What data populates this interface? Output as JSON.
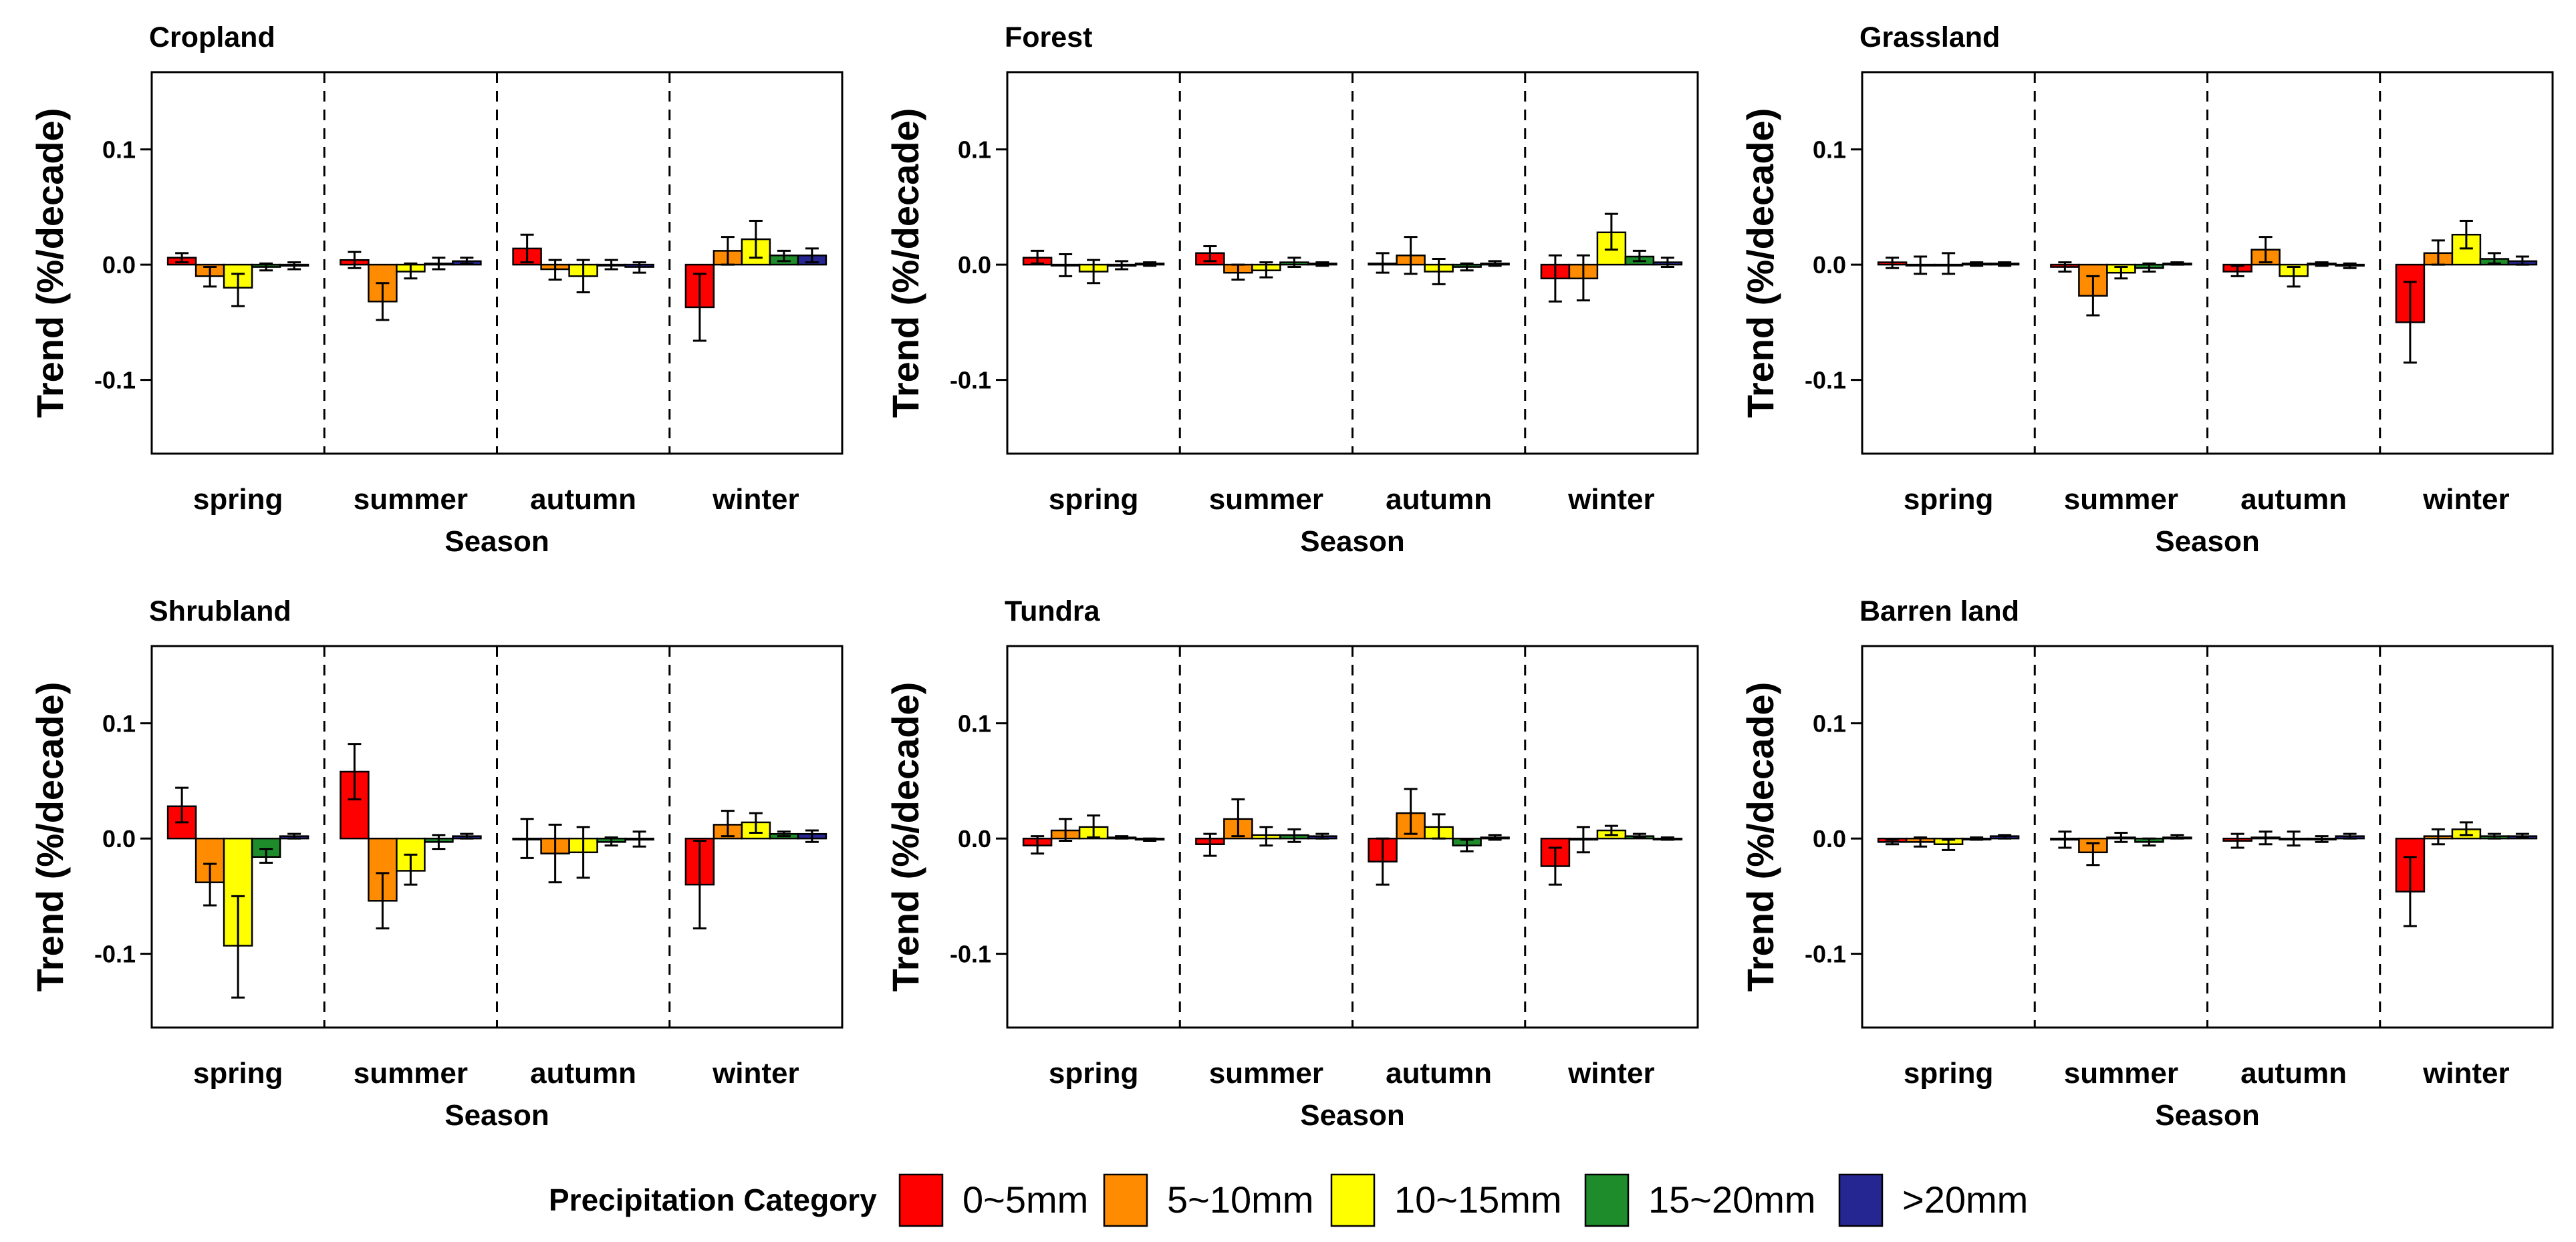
{
  "legend": {
    "title": "Precipitation Category",
    "items": [
      {
        "label": "0~5mm",
        "color": "#FF0000"
      },
      {
        "label": "5~10mm",
        "color": "#FF8C00"
      },
      {
        "label": "10~15mm",
        "color": "#FFFF00"
      },
      {
        "label": "15~20mm",
        "color": "#1E8C2A"
      },
      {
        "label": ">20mm",
        "color": "#262693"
      }
    ]
  },
  "chart_data": [
    {
      "type": "bar",
      "title": "Cropland",
      "xlabel": "Season",
      "ylabel": "Trend (%/decade)",
      "categories": [
        "spring",
        "summer",
        "autumn",
        "winter"
      ],
      "ylim": [
        -0.164,
        0.167
      ],
      "yticks": [
        0.1,
        0.0,
        -0.1
      ],
      "ytick_labels": [
        "0.1",
        "0.0",
        "-0.1"
      ],
      "series": [
        {
          "legend_item": 0,
          "values": [
            0.006,
            0.004,
            0.014,
            -0.037
          ],
          "err_low": [
            0.002,
            -0.003,
            0.002,
            -0.066
          ],
          "err_high": [
            0.01,
            0.011,
            0.026,
            -0.008
          ]
        },
        {
          "legend_item": 1,
          "values": [
            -0.01,
            -0.032,
            -0.004,
            0.012
          ],
          "err_low": [
            -0.019,
            -0.048,
            -0.013,
            0.0
          ],
          "err_high": [
            -0.002,
            -0.016,
            0.004,
            0.024
          ]
        },
        {
          "legend_item": 2,
          "values": [
            -0.02,
            -0.006,
            -0.01,
            0.022
          ],
          "err_low": [
            -0.036,
            -0.012,
            -0.024,
            0.006
          ],
          "err_high": [
            -0.008,
            0.001,
            0.004,
            0.038
          ]
        },
        {
          "legend_item": 3,
          "values": [
            -0.002,
            0.001,
            0.0,
            0.008
          ],
          "err_low": [
            -0.005,
            -0.004,
            -0.004,
            0.003
          ],
          "err_high": [
            0.001,
            0.006,
            0.004,
            0.012
          ]
        },
        {
          "legend_item": 4,
          "values": [
            -0.001,
            0.003,
            -0.002,
            0.008
          ],
          "err_low": [
            -0.004,
            0.001,
            -0.007,
            0.002
          ],
          "err_high": [
            0.002,
            0.006,
            0.002,
            0.014
          ]
        }
      ]
    },
    {
      "type": "bar",
      "title": "Forest",
      "xlabel": "Season",
      "ylabel": "Trend (%/decade)",
      "categories": [
        "spring",
        "summer",
        "autumn",
        "winter"
      ],
      "ylim": [
        -0.164,
        0.167
      ],
      "yticks": [
        0.1,
        0.0,
        -0.1
      ],
      "ytick_labels": [
        "0.1",
        "0.0",
        "-0.1"
      ],
      "series": [
        {
          "legend_item": 0,
          "values": [
            0.006,
            0.01,
            0.001,
            -0.012
          ],
          "err_low": [
            0.001,
            0.003,
            -0.007,
            -0.032
          ],
          "err_high": [
            0.012,
            0.016,
            0.01,
            0.008
          ]
        },
        {
          "legend_item": 1,
          "values": [
            0.0,
            -0.007,
            0.008,
            -0.012
          ],
          "err_low": [
            -0.01,
            -0.013,
            -0.008,
            -0.031
          ],
          "err_high": [
            0.009,
            0.0,
            0.024,
            0.008
          ]
        },
        {
          "legend_item": 2,
          "values": [
            -0.006,
            -0.005,
            -0.006,
            0.028
          ],
          "err_low": [
            -0.016,
            -0.011,
            -0.017,
            0.013
          ],
          "err_high": [
            0.004,
            0.002,
            0.005,
            0.044
          ]
        },
        {
          "legend_item": 3,
          "values": [
            -0.001,
            0.002,
            -0.002,
            0.007
          ],
          "err_low": [
            -0.004,
            -0.002,
            -0.005,
            0.003
          ],
          "err_high": [
            0.003,
            0.006,
            0.001,
            0.012
          ]
        },
        {
          "legend_item": 4,
          "values": [
            0.001,
            0.001,
            0.001,
            0.002
          ],
          "err_low": [
            -0.001,
            -0.001,
            -0.001,
            -0.002
          ],
          "err_high": [
            0.002,
            0.002,
            0.003,
            0.006
          ]
        }
      ]
    },
    {
      "type": "bar",
      "title": "Grassland",
      "xlabel": "Season",
      "ylabel": "Trend (%/decade)",
      "categories": [
        "spring",
        "summer",
        "autumn",
        "winter"
      ],
      "ylim": [
        -0.164,
        0.167
      ],
      "yticks": [
        0.1,
        0.0,
        -0.1
      ],
      "ytick_labels": [
        "0.1",
        "0.0",
        "-0.1"
      ],
      "series": [
        {
          "legend_item": 0,
          "values": [
            0.002,
            -0.002,
            -0.006,
            -0.05
          ],
          "err_low": [
            -0.003,
            -0.006,
            -0.01,
            -0.085
          ],
          "err_high": [
            0.006,
            0.002,
            -0.001,
            -0.015
          ]
        },
        {
          "legend_item": 1,
          "values": [
            0.0,
            -0.027,
            0.013,
            0.01
          ],
          "err_low": [
            -0.008,
            -0.044,
            0.002,
            0.0
          ],
          "err_high": [
            0.007,
            -0.01,
            0.024,
            0.021
          ]
        },
        {
          "legend_item": 2,
          "values": [
            0.0,
            -0.007,
            -0.01,
            0.026
          ],
          "err_low": [
            -0.008,
            -0.012,
            -0.019,
            0.014
          ],
          "err_high": [
            0.01,
            -0.002,
            -0.002,
            0.038
          ]
        },
        {
          "legend_item": 3,
          "values": [
            0.001,
            -0.003,
            0.001,
            0.005
          ],
          "err_low": [
            -0.001,
            -0.006,
            -0.001,
            0.001
          ],
          "err_high": [
            0.002,
            0.001,
            0.002,
            0.01
          ]
        },
        {
          "legend_item": 4,
          "values": [
            0.001,
            0.001,
            -0.001,
            0.003
          ],
          "err_low": [
            -0.001,
            0.0,
            -0.003,
            0.0
          ],
          "err_high": [
            0.002,
            0.002,
            0.001,
            0.007
          ]
        }
      ]
    },
    {
      "type": "bar",
      "title": "Shrubland",
      "xlabel": "Season",
      "ylabel": "Trend (%/decade)",
      "categories": [
        "spring",
        "summer",
        "autumn",
        "winter"
      ],
      "ylim": [
        -0.164,
        0.167
      ],
      "yticks": [
        0.1,
        0.0,
        -0.1
      ],
      "ytick_labels": [
        "0.1",
        "0.0",
        "-0.1"
      ],
      "series": [
        {
          "legend_item": 0,
          "values": [
            0.028,
            0.058,
            0.0,
            -0.04
          ],
          "err_low": [
            0.014,
            0.034,
            -0.017,
            -0.078
          ],
          "err_high": [
            0.044,
            0.082,
            0.017,
            -0.002
          ]
        },
        {
          "legend_item": 1,
          "values": [
            -0.038,
            -0.054,
            -0.013,
            0.012
          ],
          "err_low": [
            -0.058,
            -0.078,
            -0.038,
            0.002
          ],
          "err_high": [
            -0.022,
            -0.03,
            0.012,
            0.024
          ]
        },
        {
          "legend_item": 2,
          "values": [
            -0.093,
            -0.028,
            -0.012,
            0.014
          ],
          "err_low": [
            -0.138,
            -0.04,
            -0.034,
            0.005
          ],
          "err_high": [
            -0.05,
            -0.014,
            0.01,
            0.022
          ]
        },
        {
          "legend_item": 3,
          "values": [
            -0.016,
            -0.003,
            -0.003,
            0.004
          ],
          "err_low": [
            -0.021,
            -0.009,
            -0.006,
            0.002
          ],
          "err_high": [
            -0.009,
            0.003,
            0.001,
            0.006
          ]
        },
        {
          "legend_item": 4,
          "values": [
            0.002,
            0.002,
            -0.001,
            0.004
          ],
          "err_low": [
            0.0,
            0.0,
            -0.007,
            -0.003
          ],
          "err_high": [
            0.004,
            0.004,
            0.006,
            0.007
          ]
        }
      ]
    },
    {
      "type": "bar",
      "title": "Tundra",
      "xlabel": "Season",
      "ylabel": "Trend (%/decade)",
      "categories": [
        "spring",
        "summer",
        "autumn",
        "winter"
      ],
      "ylim": [
        -0.164,
        0.167
      ],
      "yticks": [
        0.1,
        0.0,
        -0.1
      ],
      "ytick_labels": [
        "0.1",
        "0.0",
        "-0.1"
      ],
      "series": [
        {
          "legend_item": 0,
          "values": [
            -0.006,
            -0.005,
            -0.02,
            -0.024
          ],
          "err_low": [
            -0.013,
            -0.015,
            -0.04,
            -0.04
          ],
          "err_high": [
            0.002,
            0.004,
            0.0,
            -0.008
          ]
        },
        {
          "legend_item": 1,
          "values": [
            0.007,
            0.017,
            0.022,
            -0.001
          ],
          "err_low": [
            -0.002,
            0.002,
            0.004,
            -0.012
          ],
          "err_high": [
            0.017,
            0.034,
            0.043,
            0.01
          ]
        },
        {
          "legend_item": 2,
          "values": [
            0.01,
            0.003,
            0.01,
            0.007
          ],
          "err_low": [
            0.001,
            -0.006,
            0.0,
            0.003
          ],
          "err_high": [
            0.02,
            0.01,
            0.021,
            0.011
          ]
        },
        {
          "legend_item": 3,
          "values": [
            0.001,
            0.003,
            -0.006,
            0.002
          ],
          "err_low": [
            0.0,
            -0.003,
            -0.011,
            0.001
          ],
          "err_high": [
            0.002,
            0.008,
            -0.001,
            0.004
          ]
        },
        {
          "legend_item": 4,
          "values": [
            -0.001,
            0.002,
            0.001,
            0.0
          ],
          "err_low": [
            -0.002,
            0.0,
            -0.001,
            -0.001
          ],
          "err_high": [
            0.0,
            0.004,
            0.003,
            0.001
          ]
        }
      ]
    },
    {
      "type": "bar",
      "title": "Barren land",
      "xlabel": "Season",
      "ylabel": "Trend (%/decade)",
      "categories": [
        "spring",
        "summer",
        "autumn",
        "winter"
      ],
      "ylim": [
        -0.164,
        0.167
      ],
      "yticks": [
        0.1,
        0.0,
        -0.1
      ],
      "ytick_labels": [
        "0.1",
        "0.0",
        "-0.1"
      ],
      "series": [
        {
          "legend_item": 0,
          "values": [
            -0.003,
            -0.001,
            -0.002,
            -0.046
          ],
          "err_low": [
            -0.005,
            -0.008,
            -0.008,
            -0.076
          ],
          "err_high": [
            -0.001,
            0.006,
            0.004,
            -0.016
          ]
        },
        {
          "legend_item": 1,
          "values": [
            -0.003,
            -0.012,
            0.001,
            0.002
          ],
          "err_low": [
            -0.007,
            -0.023,
            -0.005,
            -0.005
          ],
          "err_high": [
            0.001,
            -0.004,
            0.006,
            0.008
          ]
        },
        {
          "legend_item": 2,
          "values": [
            -0.005,
            0.001,
            0.0,
            0.008
          ],
          "err_low": [
            -0.01,
            -0.003,
            -0.006,
            0.003
          ],
          "err_high": [
            -0.001,
            0.005,
            0.006,
            0.014
          ]
        },
        {
          "legend_item": 3,
          "values": [
            0.0,
            -0.003,
            0.0,
            0.002
          ],
          "err_low": [
            -0.001,
            -0.006,
            -0.003,
            0.0
          ],
          "err_high": [
            0.001,
            0.0,
            0.002,
            0.004
          ]
        },
        {
          "legend_item": 4,
          "values": [
            0.002,
            0.001,
            0.002,
            0.002
          ],
          "err_low": [
            0.0,
            0.0,
            0.0,
            0.001
          ],
          "err_high": [
            0.003,
            0.003,
            0.004,
            0.004
          ]
        }
      ]
    }
  ]
}
